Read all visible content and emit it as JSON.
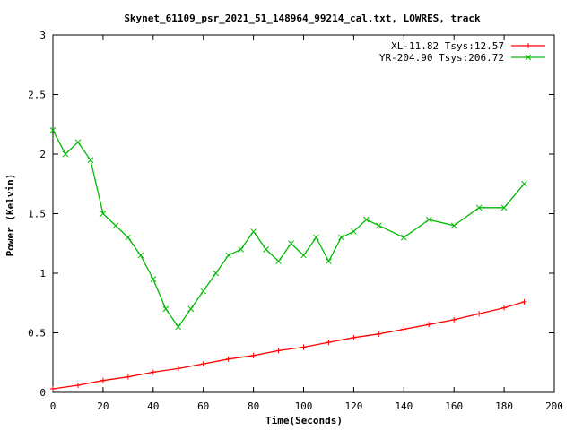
{
  "chart_data": {
    "type": "line",
    "title": "Skynet_61109_psr_2021_51_148964_99214_cal.txt, LOWRES, track",
    "xlabel": "Time(Seconds)",
    "ylabel": "Power (Kelvin)",
    "xlim": [
      0,
      200
    ],
    "ylim": [
      0,
      3
    ],
    "xticks": [
      "0",
      "20",
      "40",
      "60",
      "80",
      "100",
      "120",
      "140",
      "160",
      "180",
      "200"
    ],
    "yticks": [
      "0",
      "0.5",
      "1",
      "1.5",
      "2",
      "2.5",
      "3"
    ],
    "grid": false,
    "legend_position": "top-right",
    "series": [
      {
        "name": "XL-11.82 Tsys:12.57",
        "color": "#ff0000",
        "marker": "plus",
        "x": [
          0,
          10,
          20,
          30,
          40,
          50,
          60,
          70,
          80,
          90,
          100,
          110,
          120,
          130,
          140,
          150,
          160,
          170,
          180,
          188
        ],
        "y": [
          0.03,
          0.06,
          0.1,
          0.13,
          0.17,
          0.2,
          0.24,
          0.28,
          0.31,
          0.35,
          0.38,
          0.42,
          0.46,
          0.49,
          0.53,
          0.57,
          0.61,
          0.66,
          0.71,
          0.76
        ]
      },
      {
        "name": "YR-204.90 Tsys:206.72",
        "color": "#00bb00",
        "marker": "cross",
        "x": [
          0,
          5,
          10,
          15,
          20,
          25,
          30,
          35,
          40,
          45,
          50,
          55,
          60,
          65,
          70,
          75,
          80,
          85,
          90,
          95,
          100,
          105,
          110,
          115,
          120,
          125,
          130,
          140,
          150,
          160,
          170,
          180,
          188
        ],
        "y": [
          2.2,
          2.0,
          2.1,
          1.95,
          1.5,
          1.4,
          1.3,
          1.15,
          0.95,
          0.7,
          0.55,
          0.7,
          0.85,
          1.0,
          1.15,
          1.2,
          1.35,
          1.2,
          1.1,
          1.25,
          1.15,
          1.3,
          1.1,
          1.3,
          1.35,
          1.45,
          1.4,
          1.3,
          1.45,
          1.4,
          1.55,
          1.55,
          1.75
        ]
      }
    ]
  }
}
